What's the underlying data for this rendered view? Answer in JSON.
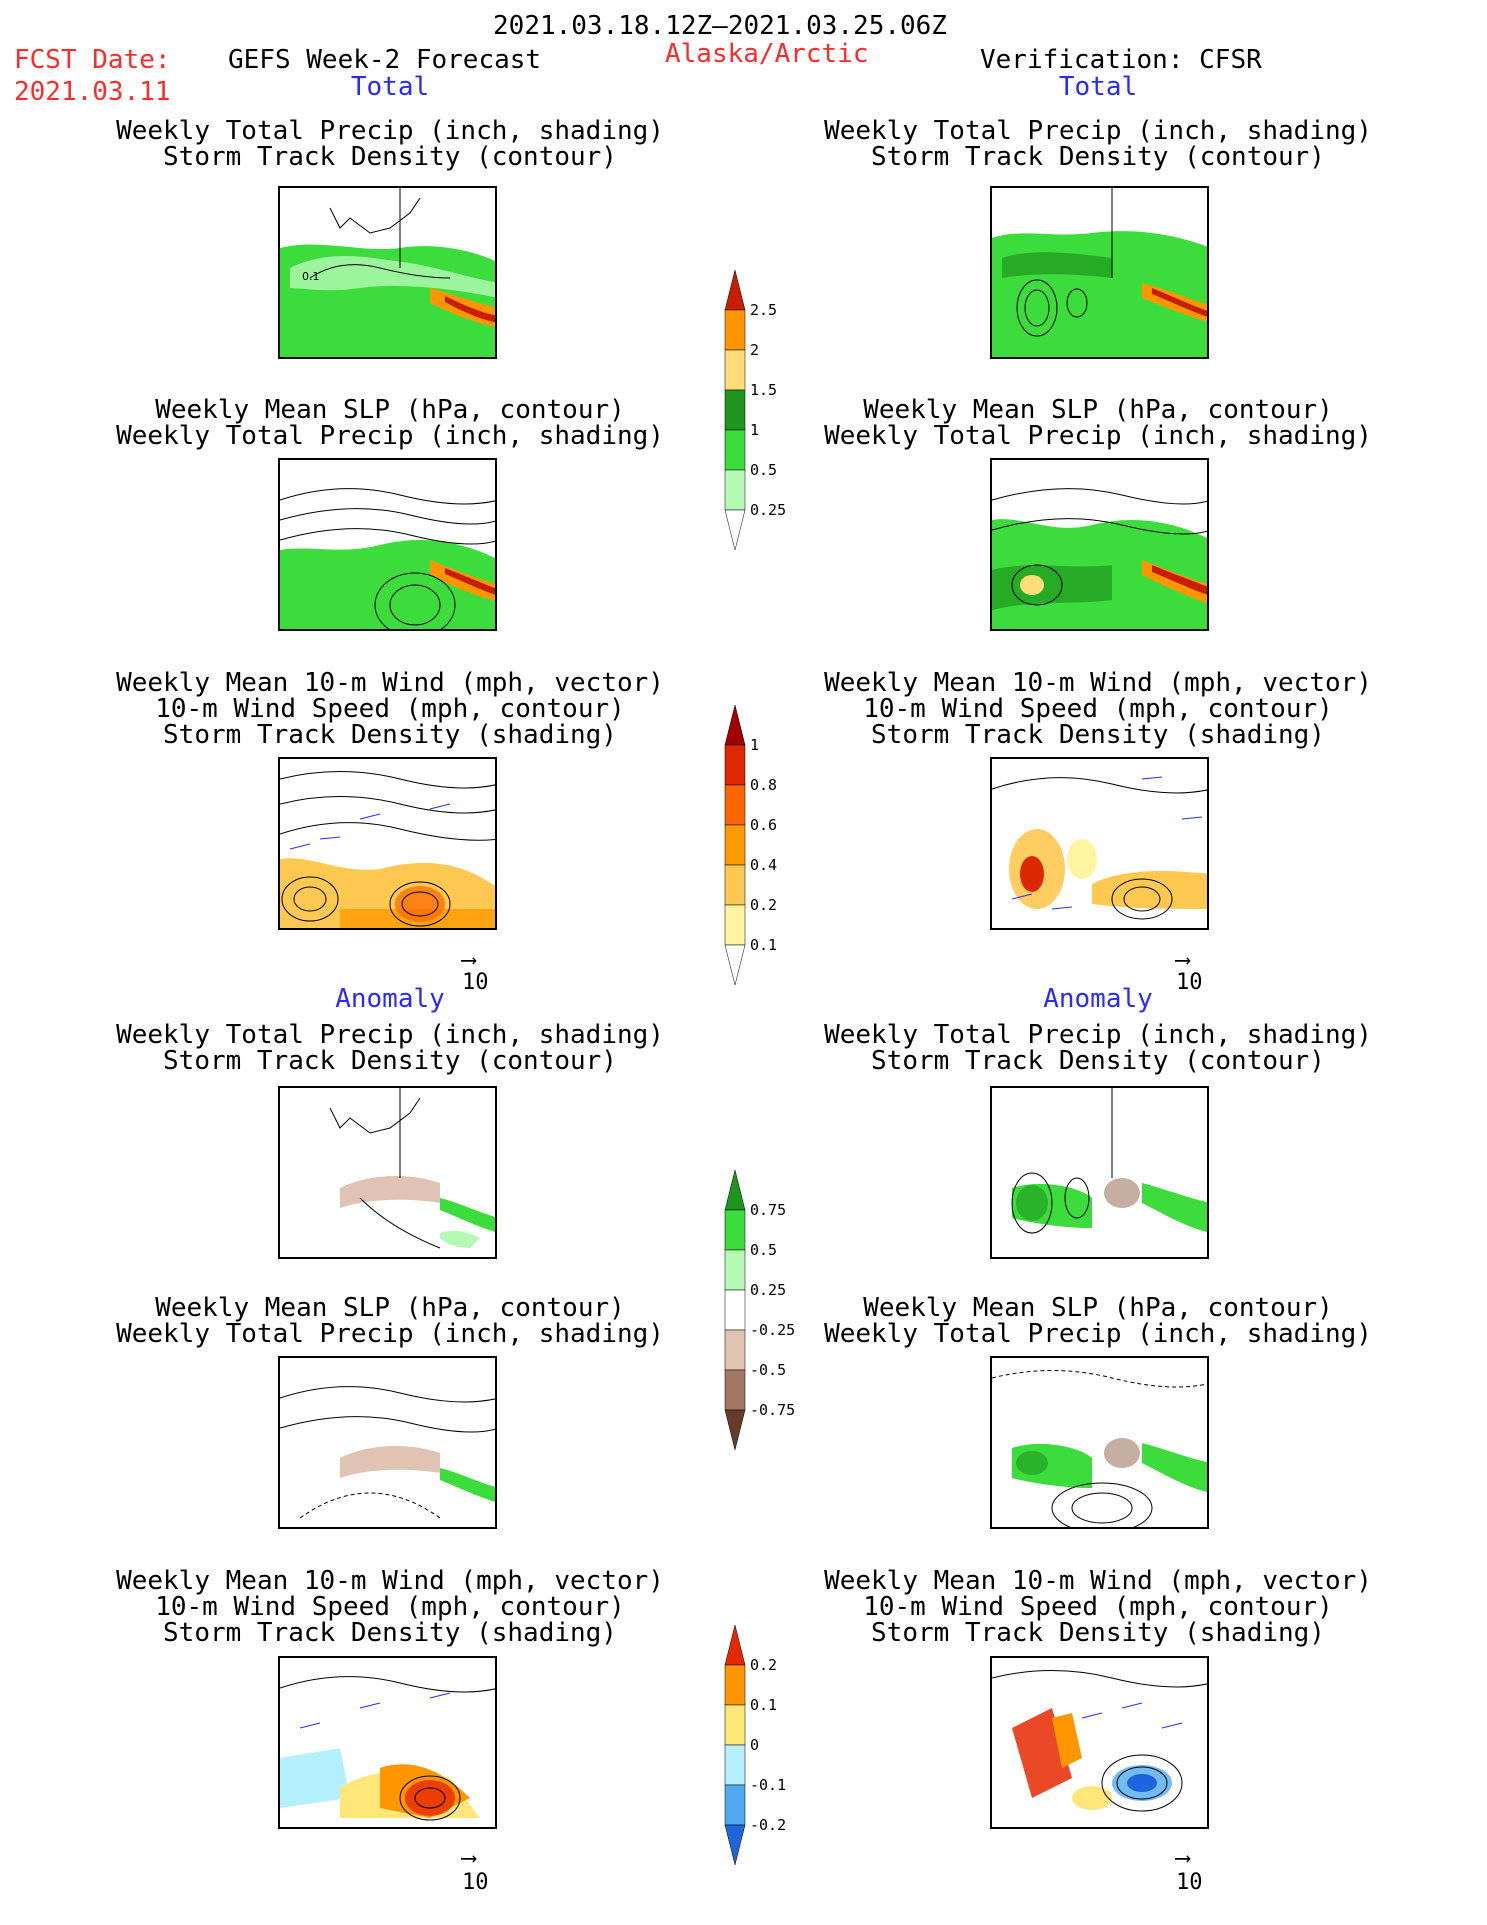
{
  "header": {
    "period": "2021.03.18.12Z–2021.03.25.06Z",
    "fcst_label": "FCST Date:",
    "fcst_date": "2021.03.11",
    "model": "GEFS Week-2 Forecast",
    "region": "Alaska/Arctic",
    "verification": "Verification: CFSR"
  },
  "sections": {
    "total_left": "Total",
    "total_right": "Total",
    "anomaly_left": "Anomaly",
    "anomaly_right": "Anomaly"
  },
  "titles": {
    "precip_storm_1": "Weekly Total Precip (inch, shading)",
    "precip_storm_2": "Storm Track Density (contour)",
    "slp_precip_1": "Weekly Mean SLP (hPa, contour)",
    "slp_precip_2": "Weekly Total Precip (inch, shading)",
    "wind_1": "Weekly Mean 10-m Wind (mph, vector)",
    "wind_2": "10-m Wind Speed (mph, contour)",
    "wind_3": "Storm Track Density (shading)"
  },
  "vector_ref": "10",
  "contour_labels": {
    "storm_contour": "0.1"
  },
  "colorbars": {
    "precip_total": {
      "labels": [
        "2.5",
        "2",
        "1.5",
        "1",
        "0.5",
        "0.25"
      ],
      "colors": [
        "#c81e00",
        "#ff9600",
        "#ffdc78",
        "#1e961e",
        "#3cdc3c",
        "#b4fab4"
      ]
    },
    "storm_total": {
      "labels": [
        "1",
        "0.8",
        "0.6",
        "0.4",
        "0.2",
        "0.1"
      ],
      "colors": [
        "#a00000",
        "#dc2800",
        "#ff6400",
        "#ff9b00",
        "#ffc850",
        "#fff5a0"
      ]
    },
    "precip_anom": {
      "labels": [
        "0.75",
        "0.5",
        "0.25",
        "-0.25",
        "-0.5",
        "-0.75"
      ],
      "colors": [
        "#1e961e",
        "#3cdc3c",
        "#b4fab4",
        "#ffffff",
        "#e1c3b4",
        "#a07864",
        "#643c28"
      ]
    },
    "storm_anom": {
      "labels": [
        "0.2",
        "0.1",
        "0",
        "-0.1",
        "-0.2"
      ],
      "colors": [
        "#e62800",
        "#ff9600",
        "#ffe678",
        "#b4f0ff",
        "#50aaf0",
        "#1e64dc"
      ]
    }
  },
  "maps": {
    "panels": [
      "precip-storm-total-forecast",
      "precip-storm-total-verification",
      "slp-precip-total-forecast",
      "slp-precip-total-verification",
      "wind-storm-total-forecast",
      "wind-storm-total-verification",
      "precip-storm-anom-forecast",
      "precip-storm-anom-verification",
      "slp-precip-anom-forecast",
      "slp-precip-anom-verification",
      "wind-storm-anom-forecast",
      "wind-storm-anom-verification"
    ]
  }
}
